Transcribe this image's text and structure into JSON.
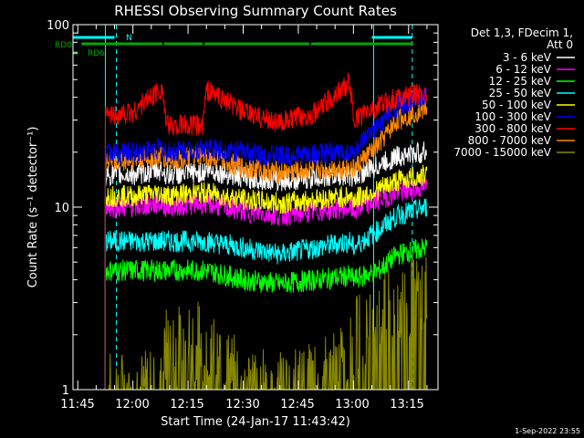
{
  "chart_data": {
    "type": "line",
    "title": "RHESSI Observing Summary Count Rates",
    "xlabel": "Start Time (24-Jan-17 11:43:42)",
    "ylabel": "Count Rate (s⁻¹ detector⁻¹)",
    "y_scale": "log",
    "ylim": [
      1,
      100
    ],
    "xlim": [
      "11:43:42",
      "13:23:00"
    ],
    "x_ticks": [
      "11:45",
      "12:00",
      "12:15",
      "12:30",
      "12:45",
      "13:00",
      "13:15"
    ],
    "y_ticks": [
      "1",
      "10",
      "100"
    ],
    "legend_header": [
      "Det 1,3, FDecim 1,",
      "Att 0"
    ],
    "legend_position": "right",
    "footer_date": "1-Sep-2022 23:55",
    "flags": [
      {
        "name": "N",
        "color": "#00ffff",
        "segments": [
          [
            "11:43:42",
            "11:55:00"
          ],
          [
            "13:05:00",
            "13:16:00"
          ]
        ]
      },
      {
        "name": "RD0",
        "color": "#00aa00",
        "segments": [
          [
            "11:46:00",
            "12:08:00"
          ],
          [
            "12:08:30",
            "12:19:00"
          ],
          [
            "12:19:30",
            "12:48:00"
          ],
          [
            "12:48:30",
            "13:16:00"
          ]
        ]
      },
      {
        "name": "RD6",
        "color": "#00aa00",
        "segments": [
          [
            "11:43:42",
            "11:45:00"
          ]
        ]
      }
    ],
    "vlines": [
      {
        "time": "11:52:30",
        "color": "#00ffff",
        "style": "solid"
      },
      {
        "time": "11:55:30",
        "color": "#00ffff",
        "style": "dashed"
      },
      {
        "time": "13:05:30",
        "color": "#00ffff",
        "style": "solid"
      },
      {
        "time": "13:16:00",
        "color": "#00ffff",
        "style": "dashed"
      }
    ],
    "x": [
      "11:52:30",
      "12:00:00",
      "12:08:00",
      "12:09:00",
      "12:19:00",
      "12:20:00",
      "12:30:00",
      "12:40:00",
      "12:50:00",
      "12:59:00",
      "13:00:00",
      "13:07:00",
      "13:12:00",
      "13:20:00"
    ],
    "series": [
      {
        "name": "3 - 6 keV",
        "color": "#ffffff",
        "values": [
          15,
          15,
          16,
          15,
          15.5,
          16,
          14.5,
          14,
          14.5,
          15,
          14.5,
          17,
          19,
          20
        ]
      },
      {
        "name": "6 - 12 keV",
        "color": "#ff00ff",
        "values": [
          10,
          10,
          10.5,
          10,
          10.5,
          10.5,
          9.5,
          9,
          9.5,
          10,
          9.5,
          11,
          12,
          13
        ]
      },
      {
        "name": "12 - 25 keV",
        "color": "#00ff00",
        "values": [
          4.5,
          4.5,
          4.5,
          4.5,
          4.5,
          4.5,
          4,
          3.8,
          4,
          4.2,
          4,
          4.5,
          5.5,
          6
        ]
      },
      {
        "name": "25 - 50 keV",
        "color": "#00ffff",
        "values": [
          6.5,
          6.5,
          6.5,
          6.5,
          6.5,
          6.5,
          6,
          5.5,
          6,
          6.5,
          6,
          7.5,
          9,
          10
        ]
      },
      {
        "name": "50 - 100 keV",
        "color": "#ffff00",
        "values": [
          11.5,
          11.5,
          12,
          11.5,
          12,
          12,
          11,
          10.5,
          11,
          11.5,
          11,
          12.5,
          14,
          15
        ]
      },
      {
        "name": "100 - 300 keV",
        "color": "#0000ff",
        "values": [
          20,
          20,
          21,
          20,
          21,
          21,
          20,
          19,
          19.5,
          20,
          19.5,
          28,
          36,
          40
        ]
      },
      {
        "name": "300 - 800 keV",
        "color": "#ff0000",
        "values": [
          32,
          33,
          45,
          28,
          28,
          44,
          33,
          29,
          33,
          48,
          30,
          36,
          40,
          42
        ]
      },
      {
        "name": "800 - 7000 keV",
        "color": "#ff8800",
        "values": [
          18,
          18,
          19,
          18,
          19,
          19,
          16.5,
          15.5,
          16,
          16.5,
          16,
          22,
          30,
          35
        ]
      },
      {
        "name": "7000 - 15000 keV",
        "color": "#888800",
        "values": [
          1,
          1,
          1,
          1.7,
          1.9,
          1.6,
          1.1,
          1,
          1.1,
          1.4,
          1.9,
          2.5,
          3,
          3.5
        ]
      }
    ]
  }
}
